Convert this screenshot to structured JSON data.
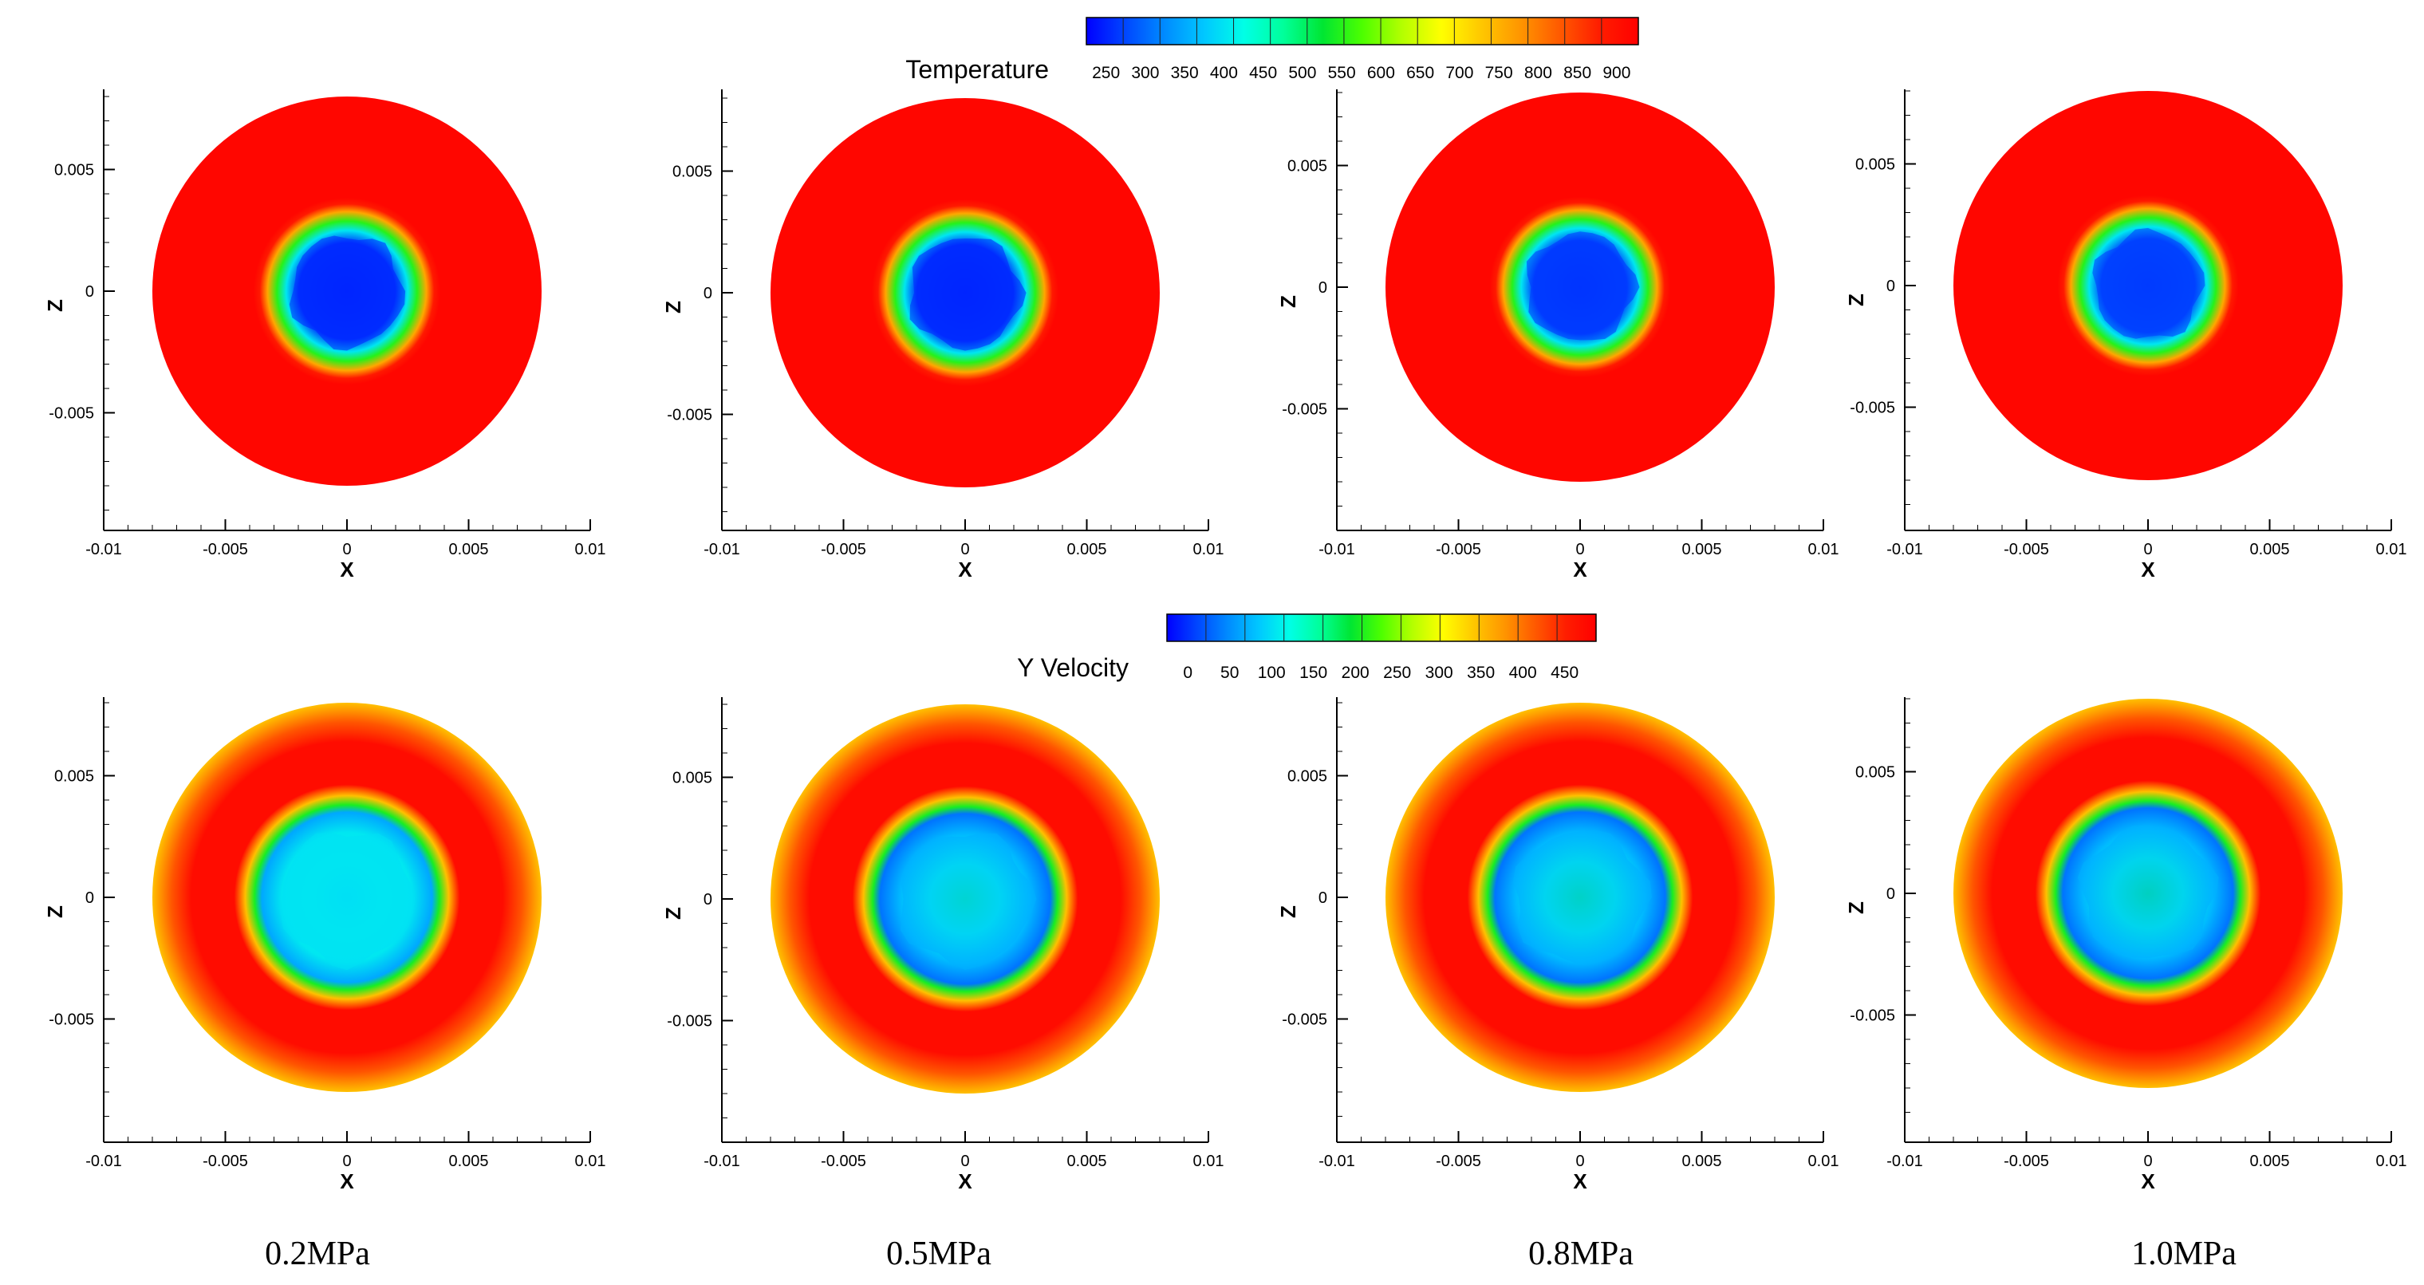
{
  "colors": {
    "cmap": [
      "#0000ff",
      "#0047ff",
      "#008cff",
      "#00c8ff",
      "#00ffe6",
      "#00ff9a",
      "#00e632",
      "#4dff00",
      "#b3ff00",
      "#ffff00",
      "#ffc800",
      "#ff9600",
      "#ff5a00",
      "#ff1e00",
      "#ff0000"
    ],
    "panel_bg": "#ffffff",
    "axis": "#000000"
  },
  "chart_data": [
    {
      "type": "heatmap",
      "name": "temperature-contours",
      "legend": {
        "title": "Temperature",
        "ticks": [
          "250",
          "300",
          "350",
          "400",
          "450",
          "500",
          "550",
          "600",
          "650",
          "700",
          "750",
          "800",
          "850",
          "900"
        ],
        "min": 250,
        "max": 920
      },
      "xlabel": "X",
      "ylabel": "Z",
      "xlim": [
        -0.01,
        0.01
      ],
      "ylim": [
        -0.0098,
        0.0082
      ],
      "xticks": [
        "-0.01",
        "-0.005",
        "0",
        "0.005",
        "0.01"
      ],
      "yticks": [
        "0.005",
        "0",
        "-0.005"
      ],
      "domain_radius": 0.008,
      "panels": [
        {
          "pressure": "0.2MPa",
          "core_radius": 0.0032,
          "outer_value": 910,
          "core_value": 275,
          "ring_value": 560
        },
        {
          "pressure": "0.5MPa",
          "core_radius": 0.0032,
          "outer_value": 910,
          "core_value": 275,
          "ring_value": 560
        },
        {
          "pressure": "0.8MPa",
          "core_radius": 0.0031,
          "outer_value": 910,
          "core_value": 285,
          "ring_value": 560
        },
        {
          "pressure": "1.0MPa",
          "core_radius": 0.0031,
          "outer_value": 910,
          "core_value": 290,
          "ring_value": 560
        }
      ]
    },
    {
      "type": "heatmap",
      "name": "y-velocity-contours",
      "legend": {
        "title": "Y Velocity",
        "ticks": [
          "0",
          "50",
          "100",
          "150",
          "200",
          "250",
          "300",
          "350",
          "400",
          "450"
        ],
        "min": -30,
        "max": 480
      },
      "xlabel": "X",
      "ylabel": "Z",
      "xlim": [
        -0.01,
        0.01
      ],
      "ylim": [
        -0.0098,
        0.0082
      ],
      "xticks": [
        "-0.01",
        "-0.005",
        "0",
        "0.005",
        "0.01"
      ],
      "yticks": [
        "0.005",
        "0",
        "-0.005"
      ],
      "domain_radius": 0.008,
      "panels": [
        {
          "pressure": "0.2MPa",
          "core_radius": 0.0038,
          "rim_value": 340,
          "band_value": 465,
          "core_value": 70,
          "center_value": 95
        },
        {
          "pressure": "0.5MPa",
          "core_radius": 0.0038,
          "rim_value": 340,
          "band_value": 465,
          "core_value": 40,
          "center_value": 150
        },
        {
          "pressure": "0.8MPa",
          "core_radius": 0.0038,
          "rim_value": 340,
          "band_value": 465,
          "core_value": 40,
          "center_value": 160
        },
        {
          "pressure": "1.0MPa",
          "core_radius": 0.0038,
          "rim_value": 340,
          "band_value": 465,
          "core_value": 40,
          "center_value": 165
        }
      ]
    }
  ],
  "captions": [
    "0.2MPa",
    "0.5MPa",
    "0.8MPa",
    "1.0MPa"
  ]
}
